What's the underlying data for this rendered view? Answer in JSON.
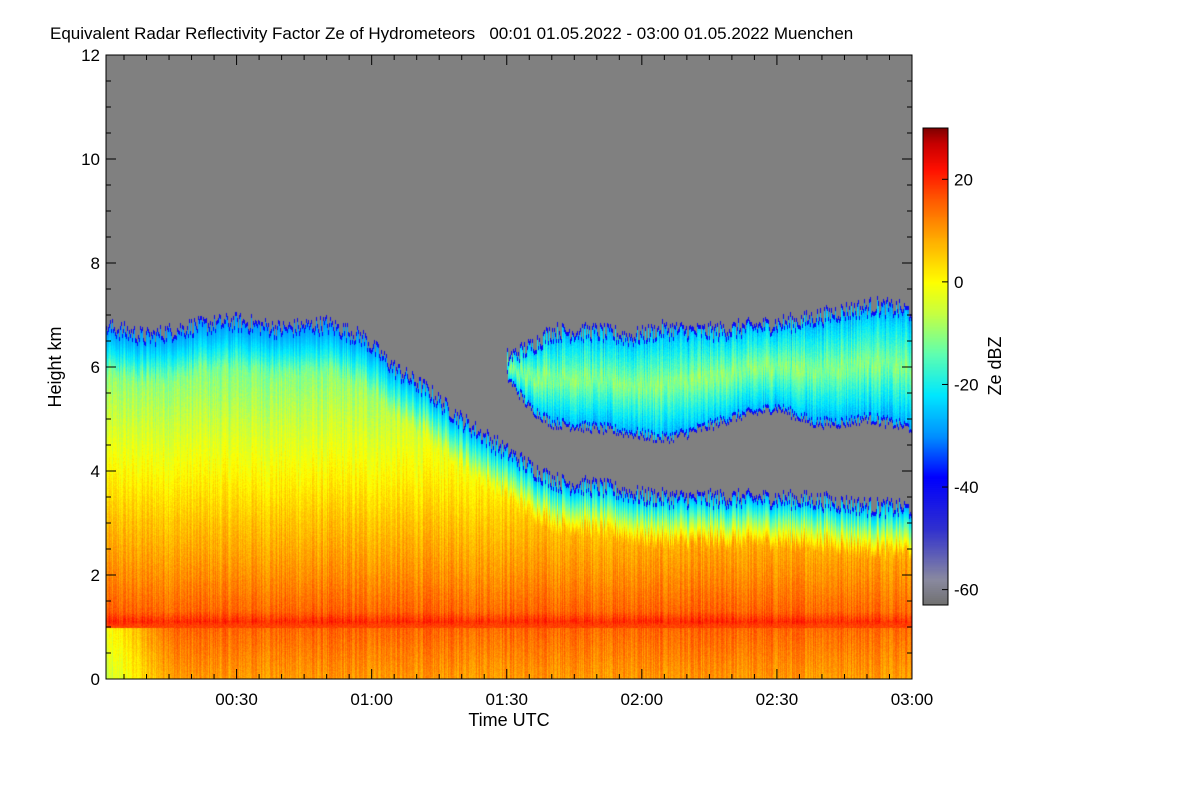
{
  "chart_data": {
    "type": "heatmap",
    "title": "Equivalent Radar Reflectivity Factor Ze of Hydrometeors   00:01 01.05.2022 - 03:00 01.05.2022 Muenchen",
    "xlabel": "Time UTC",
    "ylabel": "Height km",
    "colorbar_label": "Ze dBZ",
    "xlim_minutes": [
      1,
      180
    ],
    "ylim_km": [
      0,
      12
    ],
    "clim_dbz": [
      -63,
      30
    ],
    "no_data_color": "#808080",
    "x_ticks": [
      {
        "minutes": 30,
        "label": "00:30"
      },
      {
        "minutes": 60,
        "label": "01:00"
      },
      {
        "minutes": 90,
        "label": "01:30"
      },
      {
        "minutes": 120,
        "label": "02:00"
      },
      {
        "minutes": 150,
        "label": "02:30"
      },
      {
        "minutes": 180,
        "label": "03:00"
      }
    ],
    "y_ticks": [
      {
        "km": 0,
        "label": "0"
      },
      {
        "km": 2,
        "label": "2"
      },
      {
        "km": 4,
        "label": "4"
      },
      {
        "km": 6,
        "label": "6"
      },
      {
        "km": 8,
        "label": "8"
      },
      {
        "km": 10,
        "label": "10"
      },
      {
        "km": 12,
        "label": "12"
      }
    ],
    "colorbar_ticks": [
      {
        "dbz": 20,
        "label": "20"
      },
      {
        "dbz": 0,
        "label": "0"
      },
      {
        "dbz": -20,
        "label": "-20"
      },
      {
        "dbz": -40,
        "label": "-40"
      },
      {
        "dbz": -60,
        "label": "-60"
      }
    ],
    "colormap_stops": [
      {
        "dbz": -63,
        "color": "#707070"
      },
      {
        "dbz": -58,
        "color": "#8a8aa0"
      },
      {
        "dbz": -48,
        "color": "#3030d0"
      },
      {
        "dbz": -38,
        "color": "#0000ff"
      },
      {
        "dbz": -30,
        "color": "#0090ff"
      },
      {
        "dbz": -22,
        "color": "#00e8ff"
      },
      {
        "dbz": -14,
        "color": "#60ffb0"
      },
      {
        "dbz": -6,
        "color": "#c8ff40"
      },
      {
        "dbz": 0,
        "color": "#ffff00"
      },
      {
        "dbz": 8,
        "color": "#ffb000"
      },
      {
        "dbz": 16,
        "color": "#ff5a00"
      },
      {
        "dbz": 22,
        "color": "#ff1000"
      },
      {
        "dbz": 27,
        "color": "#c80000"
      },
      {
        "dbz": 30,
        "color": "#800000"
      }
    ],
    "echo_regions": [
      {
        "name": "main-cloud",
        "top_km": [
          [
            1,
            6.8
          ],
          [
            10,
            6.6
          ],
          [
            20,
            6.8
          ],
          [
            30,
            6.9
          ],
          [
            40,
            6.75
          ],
          [
            50,
            6.85
          ],
          [
            58,
            6.6
          ],
          [
            65,
            6.0
          ],
          [
            72,
            5.6
          ],
          [
            80,
            5.0
          ],
          [
            90,
            4.4
          ],
          [
            97,
            4.0
          ],
          [
            102,
            3.8
          ],
          [
            112,
            3.7
          ],
          [
            120,
            3.55
          ],
          [
            128,
            3.5
          ],
          [
            140,
            3.5
          ],
          [
            150,
            3.5
          ],
          [
            160,
            3.45
          ],
          [
            170,
            3.35
          ],
          [
            180,
            3.3
          ]
        ],
        "profile_dbz": [
          [
            0,
            10
          ],
          [
            1.0,
            15
          ],
          [
            1.1,
            20
          ],
          [
            1.3,
            15
          ],
          [
            2.0,
            11
          ],
          [
            3.0,
            6
          ],
          [
            4.0,
            0
          ],
          [
            5.0,
            -6
          ],
          [
            6.0,
            -12
          ],
          [
            6.8,
            -20
          ]
        ],
        "top_fringe_dbz": -30
      },
      {
        "name": "upper-layer",
        "base_km": [
          [
            90,
            5.8
          ],
          [
            95,
            5.2
          ],
          [
            100,
            4.9
          ],
          [
            110,
            4.8
          ],
          [
            118,
            4.7
          ],
          [
            125,
            4.6
          ],
          [
            130,
            4.7
          ],
          [
            140,
            5.0
          ],
          [
            150,
            5.2
          ],
          [
            158,
            4.9
          ],
          [
            165,
            4.9
          ],
          [
            170,
            5.0
          ],
          [
            180,
            4.8
          ]
        ],
        "top_km": [
          [
            90,
            6.2
          ],
          [
            95,
            6.4
          ],
          [
            100,
            6.7
          ],
          [
            110,
            6.7
          ],
          [
            118,
            6.6
          ],
          [
            125,
            6.75
          ],
          [
            135,
            6.7
          ],
          [
            145,
            6.8
          ],
          [
            155,
            6.9
          ],
          [
            165,
            7.1
          ],
          [
            172,
            7.2
          ],
          [
            180,
            7.1
          ]
        ],
        "core_dbz": -10,
        "edge_dbz": -28
      }
    ],
    "bright_band": {
      "height_km": 1.05,
      "dbz": 22
    }
  }
}
